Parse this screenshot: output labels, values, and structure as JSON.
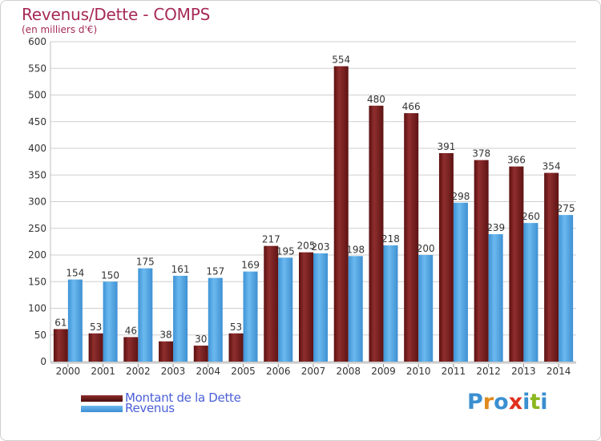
{
  "header": {
    "title": "Revenus/Dette - COMPS",
    "subtitle": "(en milliers d'€)"
  },
  "legend": [
    {
      "label": "Montant de la Dette",
      "color": "#7a1f1f"
    },
    {
      "label": "Revenus",
      "color": "#4aa3e4"
    }
  ],
  "logo": {
    "text": "Proxiti",
    "letter_colors": [
      "#3a8fd0",
      "#e08a1e",
      "#3a8fd0",
      "#e0301e",
      "#3a8fd0",
      "#8ab81e",
      "#3a8fd0"
    ]
  },
  "chart_data": {
    "type": "bar",
    "title": "Revenus/Dette - COMPS",
    "subtitle": "(en milliers d'€)",
    "categories": [
      "2000",
      "2001",
      "2002",
      "2003",
      "2004",
      "2005",
      "2006",
      "2007",
      "2008",
      "2009",
      "2010",
      "2011",
      "2012",
      "2013",
      "2014"
    ],
    "series": [
      {
        "name": "Montant de la Dette",
        "color": "#7a1f1f",
        "values": [
          61,
          53,
          46,
          38,
          30,
          53,
          217,
          205,
          554,
          480,
          466,
          391,
          378,
          366,
          354
        ]
      },
      {
        "name": "Revenus",
        "color": "#4aa3e4",
        "values": [
          154,
          150,
          175,
          161,
          157,
          169,
          195,
          203,
          198,
          218,
          200,
          298,
          239,
          260,
          275
        ]
      }
    ],
    "ylim": [
      0,
      600
    ],
    "yticks": [
      0,
      50,
      100,
      150,
      200,
      250,
      300,
      350,
      400,
      450,
      500,
      550,
      600
    ],
    "grid": true,
    "legend_position": "bottom-left"
  }
}
